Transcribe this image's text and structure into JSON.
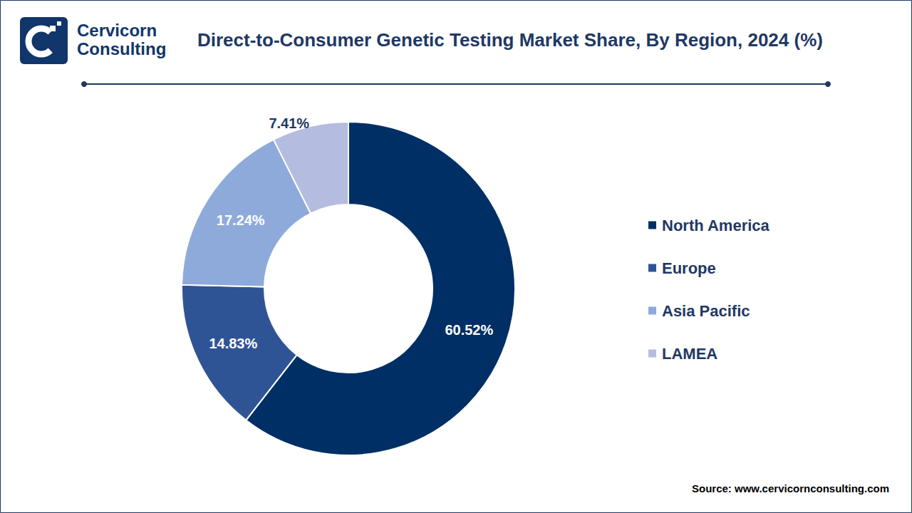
{
  "chart_data": {
    "type": "pie",
    "title": "Direct-to-Consumer Genetic Testing Market Share, By Region, 2024 (%)",
    "categories": [
      "North America",
      "Europe",
      "Asia Pacific",
      "LAMEA"
    ],
    "values": [
      60.52,
      14.83,
      17.24,
      7.41
    ],
    "value_labels": [
      "60.52%",
      "14.83%",
      "17.24%",
      "7.41%"
    ],
    "colors": [
      "#002f65",
      "#2f5495",
      "#8eaadb",
      "#b4bddf"
    ],
    "data_labels": true,
    "legend": "right",
    "logo_text": [
      "Cervicorn",
      "Consulting"
    ],
    "source": "Source: www.cervicornconsulting.com"
  }
}
